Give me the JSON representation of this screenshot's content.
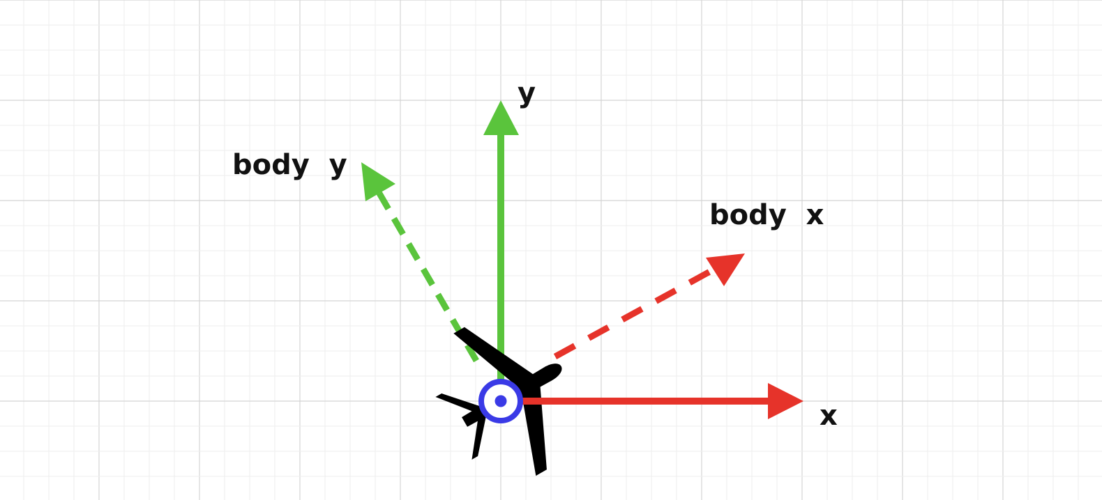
{
  "labels": {
    "world_x": "x",
    "world_y": "y",
    "body_x": "body  x",
    "body_y": "body  y"
  },
  "colors": {
    "background": "#ffffff",
    "grid_minor": "#eeeeee",
    "grid_major": "#d4d4d4",
    "x_axis": "#e6332a",
    "y_axis": "#5ac43c",
    "aircraft": "#000000",
    "origin_marker": "#3a3ae6",
    "label_text": "#111111"
  },
  "icons": {
    "aircraft": "airplane-icon",
    "origin": "origin-marker-icon"
  },
  "body_frame": {
    "rotation_deg": 30,
    "line_style": "dashed"
  },
  "world_frame": {
    "line_style": "solid"
  }
}
